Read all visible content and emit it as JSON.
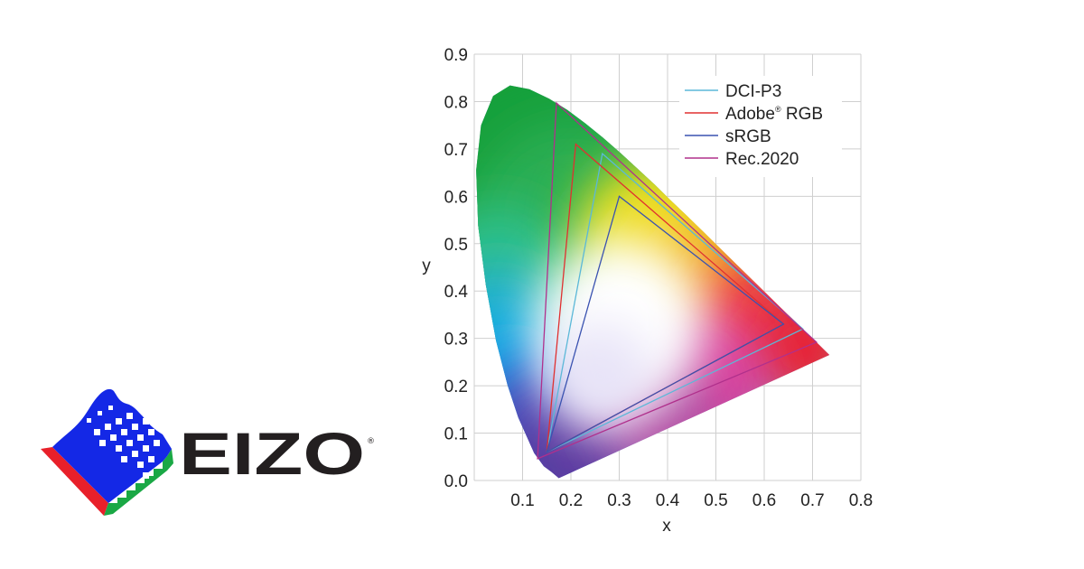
{
  "brand": {
    "name": "EIZO",
    "registered": "®",
    "colors": {
      "blue": "#1428e6",
      "red": "#e8202a",
      "green": "#1aa845",
      "text": "#231f20"
    }
  },
  "chart_data": {
    "type": "line",
    "xlabel": "x",
    "ylabel": "y",
    "xlim": [
      0,
      0.8
    ],
    "ylim": [
      0,
      0.9
    ],
    "x_ticks": [
      "0.1",
      "0.2",
      "0.3",
      "0.4",
      "0.5",
      "0.6",
      "0.7",
      "0.8"
    ],
    "y_ticks": [
      "0.0",
      "0.1",
      "0.2",
      "0.3",
      "0.4",
      "0.5",
      "0.6",
      "0.7",
      "0.8",
      "0.9"
    ],
    "grid": true,
    "legend_position": "top-right",
    "spectral_locus": [
      [
        0.175,
        0.005
      ],
      [
        0.16,
        0.018
      ],
      [
        0.144,
        0.03
      ],
      [
        0.124,
        0.058
      ],
      [
        0.091,
        0.133
      ],
      [
        0.069,
        0.201
      ],
      [
        0.045,
        0.295
      ],
      [
        0.024,
        0.413
      ],
      [
        0.008,
        0.538
      ],
      [
        0.004,
        0.655
      ],
      [
        0.014,
        0.75
      ],
      [
        0.039,
        0.812
      ],
      [
        0.074,
        0.834
      ],
      [
        0.114,
        0.826
      ],
      [
        0.155,
        0.806
      ],
      [
        0.193,
        0.782
      ],
      [
        0.23,
        0.754
      ],
      [
        0.266,
        0.724
      ],
      [
        0.302,
        0.692
      ],
      [
        0.337,
        0.659
      ],
      [
        0.373,
        0.625
      ],
      [
        0.409,
        0.589
      ],
      [
        0.445,
        0.554
      ],
      [
        0.479,
        0.52
      ],
      [
        0.512,
        0.487
      ],
      [
        0.544,
        0.455
      ],
      [
        0.575,
        0.424
      ],
      [
        0.603,
        0.396
      ],
      [
        0.627,
        0.372
      ],
      [
        0.648,
        0.351
      ],
      [
        0.666,
        0.334
      ],
      [
        0.68,
        0.32
      ],
      [
        0.692,
        0.308
      ],
      [
        0.701,
        0.299
      ],
      [
        0.708,
        0.292
      ],
      [
        0.714,
        0.286
      ],
      [
        0.723,
        0.277
      ],
      [
        0.735,
        0.265
      ]
    ],
    "series": [
      {
        "name": "DCI-P3",
        "color": "#5bb8d8",
        "points": [
          [
            0.68,
            0.32
          ],
          [
            0.265,
            0.69
          ],
          [
            0.15,
            0.06
          ]
        ]
      },
      {
        "name": "Adobe® RGB",
        "color": "#e03030",
        "points": [
          [
            0.64,
            0.33
          ],
          [
            0.21,
            0.71
          ],
          [
            0.15,
            0.06
          ]
        ]
      },
      {
        "name": "sRGB",
        "color": "#3a52b0",
        "points": [
          [
            0.64,
            0.33
          ],
          [
            0.3,
            0.6
          ],
          [
            0.15,
            0.06
          ]
        ]
      },
      {
        "name": "Rec.2020",
        "color": "#b0308c",
        "points": [
          [
            0.708,
            0.292
          ],
          [
            0.17,
            0.797
          ],
          [
            0.131,
            0.046
          ]
        ]
      }
    ],
    "legend": [
      {
        "label": "DCI-P3",
        "sup": ""
      },
      {
        "label": "Adobe",
        "sup": "®",
        "suffix": " RGB"
      },
      {
        "label": "sRGB",
        "sup": ""
      },
      {
        "label": "Rec.2020",
        "sup": ""
      }
    ]
  }
}
